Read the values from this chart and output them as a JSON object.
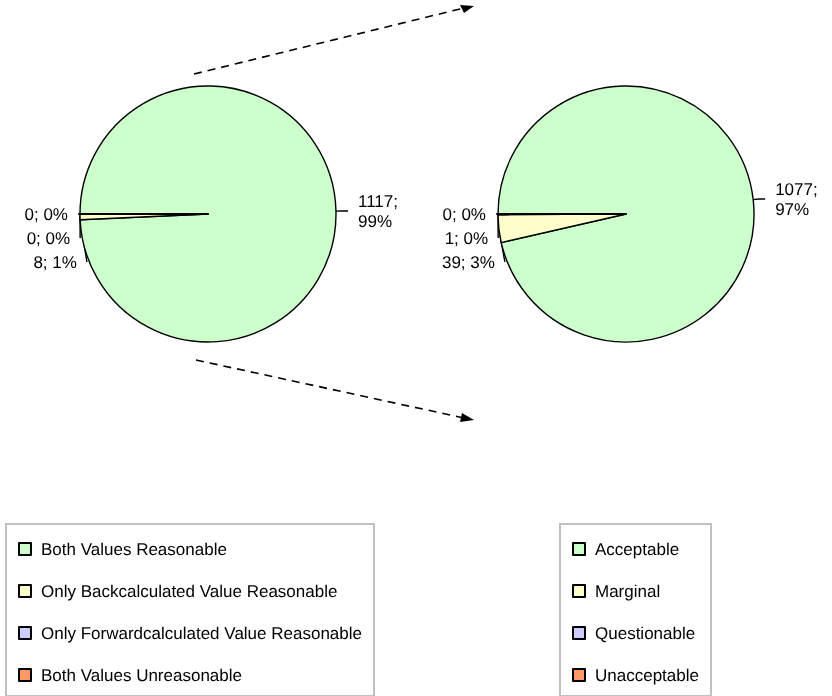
{
  "chart_data": [
    {
      "type": "pie",
      "categories": [
        "Both Values Reasonable",
        "Only Backcalculated Value Reasonable",
        "Only Forwardcalculated Value Reasonable",
        "Both Values Unreasonable"
      ],
      "values": [
        1117,
        8,
        0,
        0
      ],
      "colors": [
        "#ccffcc",
        "#ffffcc",
        "#ccccff",
        "#ff9966"
      ],
      "value_labels": [
        "1117; 99%",
        "8; 1%",
        "0; 0%",
        "0; 0%"
      ],
      "legend": "bottom"
    },
    {
      "type": "pie",
      "categories": [
        "Acceptable",
        "Marginal",
        "Questionable",
        "Unacceptable"
      ],
      "values": [
        1077,
        39,
        1,
        0
      ],
      "colors": [
        "#ccffcc",
        "#ffffcc",
        "#ccccff",
        "#ff9966"
      ],
      "value_labels": [
        "1077; 97%",
        "39; 3%",
        "1; 0%",
        "0; 0%"
      ],
      "legend": "bottom"
    }
  ]
}
